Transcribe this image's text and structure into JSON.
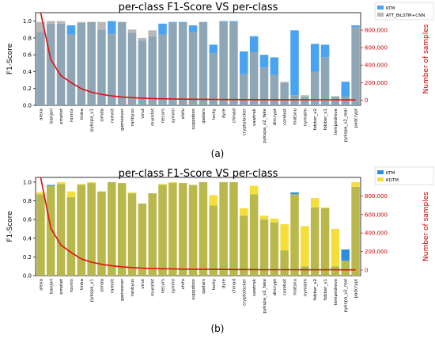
{
  "panel_labels": [
    "(a)",
    "(b)"
  ],
  "chart_data": [
    {
      "type": "bar",
      "title": "per-class F1-Score VS per-class",
      "ylabel": "F1-Score",
      "y2label": "Number of samples",
      "ylim": [
        0,
        1.1
      ],
      "y2lim": [
        -60000,
        1000000
      ],
      "yticks": [
        "0.0",
        "0.2",
        "0.4",
        "0.6",
        "0.8",
        "1.0"
      ],
      "y2ticks": [
        "0",
        "200,000",
        "400,000",
        "600,000",
        "800,000"
      ],
      "legend_position": "top-right",
      "categories": [
        "alexa",
        "banjori",
        "emotet",
        "rovnix",
        "tinba",
        "pykspa_v1",
        "simda",
        "ramnit",
        "gameover",
        "ranbyus",
        "virut",
        "murofet",
        "necurs",
        "symmi",
        "shifu",
        "suppobox",
        "qadars",
        "locky",
        "dyre",
        "chinad",
        "cryptolocker",
        "vawtrak",
        "pykspa_v2_fake",
        "dircrypt",
        "corebot",
        "matsnu",
        "nymaim",
        "fobber_v2",
        "fobber_v1",
        "tempedreve",
        "pykspa_v2_real",
        "padcrypt"
      ],
      "series": [
        {
          "name": "KTM",
          "color": "#4aa3f0",
          "values": [
            0.87,
            0.97,
            0.97,
            0.95,
            0.98,
            0.99,
            0.9,
            1.0,
            0.99,
            0.86,
            0.77,
            0.82,
            0.97,
            0.99,
            0.99,
            0.95,
            0.99,
            0.72,
            1.0,
            1.0,
            0.64,
            0.82,
            0.6,
            0.57,
            0.27,
            0.89,
            0.1,
            0.73,
            0.72,
            0.1,
            0.28,
            0.95
          ]
        },
        {
          "name": "ATT_BiLSTM+CNN",
          "color": "#b8b8b8",
          "values": [
            0.99,
            1.0,
            1.0,
            0.84,
            0.99,
            0.99,
            0.99,
            0.85,
            0.99,
            0.9,
            0.8,
            0.89,
            0.84,
            0.98,
            0.98,
            0.87,
            0.99,
            0.62,
            0.99,
            0.99,
            0.37,
            0.63,
            0.45,
            0.36,
            0.28,
            0.12,
            0.12,
            0.4,
            0.57,
            0.11,
            0.1,
            0.93
          ]
        }
      ],
      "samples": [
        1000000,
        460000,
        280000,
        200000,
        130000,
        90000,
        65000,
        48000,
        36000,
        28000,
        22000,
        18000,
        15000,
        13000,
        11000,
        9500,
        8500,
        7500,
        6500,
        6000,
        5500,
        5000,
        4500,
        4200,
        4000,
        3800,
        3600,
        3400,
        3200,
        3000,
        2800,
        2600
      ]
    },
    {
      "type": "bar",
      "title": "per-class F1-Score VS per-class",
      "ylabel": "F1-Score",
      "y2label": "Number of samples",
      "ylim": [
        0,
        1.05
      ],
      "y2lim": [
        -60000,
        1000000
      ],
      "yticks": [
        "0.0",
        "0.2",
        "0.4",
        "0.6",
        "0.8",
        "1.0"
      ],
      "y2ticks": [
        "0",
        "200,000",
        "400,000",
        "600,000",
        "800,000"
      ],
      "legend_position": "top-right",
      "categories": [
        "alexa",
        "banjori",
        "emotet",
        "rovnix",
        "tinba",
        "pykspa_v1",
        "simda",
        "ramnit",
        "gameover",
        "ranbyus",
        "virut",
        "murofet",
        "necurs",
        "symmi",
        "shifu",
        "suppobox",
        "qadars",
        "locky",
        "dyre",
        "chinad",
        "cryptolocker",
        "vawtrak",
        "pykspa_v2_fake",
        "dircrypt",
        "corebot",
        "matsnu",
        "nymaim",
        "fobber_v2",
        "fobber_v1",
        "tempedreve",
        "pykspa_v2_real",
        "padcrypt"
      ],
      "series": [
        {
          "name": "KTM",
          "color": "#2b8ee0",
          "values": [
            0.87,
            0.97,
            0.98,
            0.84,
            0.97,
            0.99,
            0.9,
            1.0,
            0.99,
            0.88,
            0.77,
            0.88,
            0.97,
            0.99,
            0.99,
            0.97,
            1.0,
            0.75,
            1.0,
            1.0,
            0.64,
            0.87,
            0.6,
            0.57,
            0.27,
            0.89,
            0.1,
            0.73,
            0.72,
            0.1,
            0.28,
            0.95
          ]
        },
        {
          "name": "KDTM",
          "color": "#f5de3c",
          "values": [
            0.89,
            0.96,
            1.0,
            0.9,
            0.98,
            1.0,
            0.9,
            1.0,
            0.99,
            0.89,
            0.77,
            0.88,
            0.98,
            1.0,
            0.99,
            0.97,
            1.0,
            0.86,
            1.0,
            1.0,
            0.72,
            0.96,
            0.64,
            0.61,
            0.55,
            0.87,
            0.53,
            0.83,
            0.73,
            0.5,
            0.16,
            1.0
          ]
        }
      ],
      "samples": [
        1000000,
        450000,
        270000,
        190000,
        120000,
        85000,
        62000,
        46000,
        35000,
        27000,
        21000,
        17000,
        14000,
        12500,
        10500,
        9200,
        8200,
        7300,
        6400,
        5900,
        5400,
        4900,
        4400,
        4100,
        3900,
        3700,
        3500,
        3300,
        3100,
        2900,
        2700,
        2500
      ]
    }
  ]
}
